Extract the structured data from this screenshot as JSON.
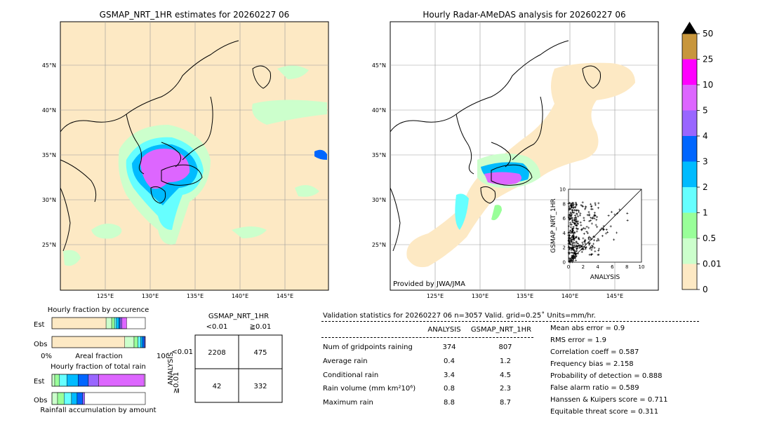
{
  "left_map": {
    "title": "GSMAP_NRT_1HR estimates for 20260227 06",
    "lat_labels": [
      "45°N",
      "40°N",
      "35°N",
      "30°N",
      "25°N"
    ],
    "lon_labels": [
      "125°E",
      "130°E",
      "135°E",
      "140°E",
      "145°E"
    ]
  },
  "right_map": {
    "title": "Hourly Radar-AMeDAS analysis for 20260227 06",
    "lat_labels": [
      "45°N",
      "40°N",
      "35°N",
      "30°N",
      "25°N"
    ],
    "lon_labels": [
      "125°E",
      "130°E",
      "135°E",
      "140°E",
      "145°E"
    ],
    "credit": "Provided by JWA/JMA"
  },
  "colorbar": {
    "labels": [
      "50",
      "25",
      "10",
      "5",
      "4",
      "3",
      "2",
      "1",
      "0.5",
      "0.01",
      "0"
    ],
    "colors": [
      "#c8963c",
      "#ff00ff",
      "#dd66ff",
      "#9966ff",
      "#0066ff",
      "#00bbff",
      "#66ffff",
      "#99ff99",
      "#ccffcc",
      "#fde9c4"
    ]
  },
  "chart_data": [
    {
      "type": "scatter",
      "title": "",
      "xlabel": "ANALYSIS",
      "ylabel": "GSMAP_NRT_1HR",
      "xlim": [
        0,
        10
      ],
      "ylim": [
        0,
        10
      ],
      "x_ticks": [
        "0",
        "2",
        "4",
        "6",
        "8",
        "10"
      ],
      "y_ticks": [
        "0",
        "2",
        "4",
        "6",
        "8",
        "10"
      ],
      "diagonal": true
    },
    {
      "type": "bar",
      "title": "Hourly fraction by occurence",
      "rows": [
        "Est",
        "Obs"
      ],
      "xlabel": "Areal fraction",
      "x_tick_labels": [
        "0%",
        "100%"
      ],
      "est_segments": [
        0.58,
        0.06,
        0.03,
        0.02,
        0.03,
        0.01,
        0.02,
        0.05
      ],
      "obs_segments": [
        0.78,
        0.1,
        0.04,
        0.03,
        0.02,
        0.02,
        0.01
      ],
      "segment_colors": [
        "#fde9c4",
        "#ccffcc",
        "#99ff99",
        "#66ffff",
        "#00bbff",
        "#0066ff",
        "#9966ff",
        "#dd66ff"
      ]
    },
    {
      "type": "bar",
      "title": "Hourly fraction of total rain",
      "rows": [
        "Est",
        "Obs"
      ],
      "xlabel": "Rainfall accumulation by amount",
      "est_segments": [
        0.03,
        0.05,
        0.08,
        0.12,
        0.11,
        0.11,
        0.49
      ],
      "obs_segments": [
        0.06,
        0.07,
        0.08,
        0.06,
        0.06,
        0.02
      ],
      "segment_colors": [
        "#ccffcc",
        "#99ff99",
        "#66ffff",
        "#00bbff",
        "#0066ff",
        "#9966ff",
        "#dd66ff"
      ]
    }
  ],
  "contingency": {
    "title": "GSMAP_NRT_1HR",
    "col_labels": [
      "<0.01",
      "≧0.01"
    ],
    "row_axis_label": "ANALYSIS",
    "row_labels": [
      "<0.01",
      "≧0.01"
    ],
    "cells": [
      [
        "2208",
        "475"
      ],
      [
        "42",
        "332"
      ]
    ]
  },
  "validation": {
    "header": "Validation statistics for 20260227 06  n=3057 Valid. grid=0.25˚ Units=mm/hr.",
    "col_analysis": "ANALYSIS",
    "col_gsmap": "GSMAP_NRT_1HR",
    "rows": [
      {
        "label": "Num of gridpoints raining",
        "analysis": "374",
        "gsmap": "807"
      },
      {
        "label": "Average rain",
        "analysis": "0.4",
        "gsmap": "1.2"
      },
      {
        "label": "Conditional rain",
        "analysis": "3.4",
        "gsmap": "4.5"
      },
      {
        "label": "Rain volume (mm km²10⁶)",
        "analysis": "0.8",
        "gsmap": "2.3"
      },
      {
        "label": "Maximum rain",
        "analysis": "8.8",
        "gsmap": "8.7"
      }
    ],
    "scores": [
      "Mean abs error =    0.9",
      "RMS error =    1.9",
      "Correlation coeff =  0.587",
      "Frequency bias =  2.158",
      "Probability of detection =  0.888",
      "False alarm ratio =  0.589",
      "Hanssen & Kuipers score =  0.711",
      "Equitable threat score =  0.311"
    ]
  }
}
